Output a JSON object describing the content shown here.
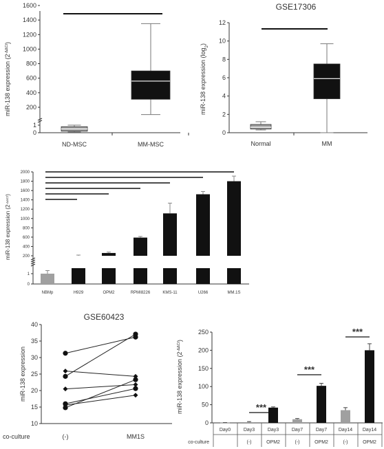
{
  "chart_data": [
    {
      "type": "box",
      "title": "",
      "ylabel": "miR-138 expression (2",
      "ylabel_sup": "-ΔΔCt",
      "ylabel_end": ")",
      "categories": [
        "ND-MSC",
        "MM-MSC"
      ],
      "yticks_upper": [
        "200",
        "400",
        "600",
        "800",
        "1000",
        "1200",
        "1400",
        "1600"
      ],
      "yticks_lower": [
        "0",
        "1"
      ],
      "boxes": [
        {
          "name": "ND-MSC",
          "min": 0.1,
          "q1": 0.2,
          "median": 0.5,
          "q3": 0.8,
          "max": 1.0,
          "color": "#9a9a9a"
        },
        {
          "name": "MM-MSC",
          "min": 100,
          "q1": 310,
          "median": 560,
          "q3": 700,
          "max": 1350,
          "color": "#111111"
        }
      ]
    },
    {
      "type": "box",
      "title": "GSE17306",
      "ylabel": "miR-138 expression (log",
      "ylabel_sub": "2",
      "ylabel_end": ")",
      "categories": [
        "Normal",
        "MM"
      ],
      "yticks": [
        "0",
        "2",
        "4",
        "6",
        "8",
        "10",
        "12"
      ],
      "ylim": [
        0,
        12
      ],
      "boxes": [
        {
          "name": "Normal",
          "min": 0.3,
          "q1": 0.4,
          "median": 0.6,
          "q3": 0.9,
          "max": 1.2,
          "color": "#9a9a9a"
        },
        {
          "name": "MM",
          "min": 0.0,
          "q1": 3.7,
          "median": 5.9,
          "q3": 7.5,
          "max": 9.7,
          "color": "#111111"
        }
      ]
    },
    {
      "type": "bar",
      "title": "",
      "ylabel": "miR-138 expression (2",
      "ylabel_sup": "-ΔΔCt",
      "ylabel_end": ")",
      "categories": [
        "NBMp",
        "H929",
        "OPM2",
        "RPMI8226",
        "KMS-11",
        "U266",
        "MM.1S"
      ],
      "values": [
        1,
        200,
        260,
        590,
        1110,
        1520,
        1800
      ],
      "errors": [
        0.3,
        15,
        20,
        25,
        220,
        60,
        110
      ],
      "colors": [
        "#a0a0a0",
        "#111111",
        "#111111",
        "#111111",
        "#111111",
        "#111111",
        "#111111"
      ],
      "yticks_upper": [
        "200",
        "400",
        "600",
        "800",
        "1000",
        "1200",
        "1400",
        "1600",
        "1800",
        "2000"
      ],
      "yticks_lower": [
        "0",
        "1"
      ]
    },
    {
      "type": "line",
      "title": "GSE60423",
      "ylabel": "miR-138 expression",
      "ylim": [
        10,
        40
      ],
      "yticks": [
        "10",
        "15",
        "20",
        "25",
        "30",
        "35",
        "40"
      ],
      "categories": [
        "(-)",
        "MM1S"
      ],
      "row_label": "co-culture",
      "series": [
        {
          "values": [
            31.3,
            36.2
          ],
          "marker": "circle"
        },
        {
          "values": [
            24.3,
            37.1
          ],
          "marker": "circle"
        },
        {
          "values": [
            16.0,
            20.6
          ],
          "marker": "circle"
        },
        {
          "values": [
            14.8,
            23.3
          ],
          "marker": "circle"
        },
        {
          "values": [
            25.9,
            24.3
          ],
          "marker": "diamond"
        },
        {
          "values": [
            20.5,
            21.8
          ],
          "marker": "diamond"
        },
        {
          "values": [
            15.6,
            18.6
          ],
          "marker": "diamond"
        }
      ]
    },
    {
      "type": "bar",
      "title": "",
      "ylabel": "miR-138 expression (2",
      "ylabel_sup": "-ΔΔCt",
      "ylabel_end": ")",
      "ylim": [
        0,
        250
      ],
      "yticks": [
        "0",
        "50",
        "100",
        "150",
        "200",
        "250"
      ],
      "categories": [
        "Day0",
        "Day3",
        "Day3",
        "Day7",
        "Day7",
        "Day14",
        "Day14"
      ],
      "conditions": [
        "",
        "(-)",
        "OPM2",
        "(-)",
        "OPM2",
        "(-)",
        "OPM2"
      ],
      "row_label": "co-culture",
      "values": [
        0.5,
        2,
        42,
        10,
        102,
        35,
        200
      ],
      "errors": [
        0.3,
        1.5,
        2,
        2,
        7,
        7,
        18
      ],
      "colors": [
        "#a0a0a0",
        "#a0a0a0",
        "#111111",
        "#a0a0a0",
        "#111111",
        "#a0a0a0",
        "#111111"
      ],
      "significance": "***"
    }
  ]
}
